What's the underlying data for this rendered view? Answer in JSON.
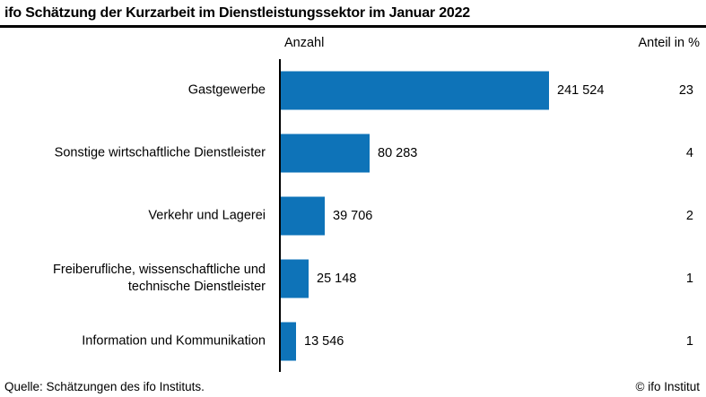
{
  "title": "ifo Schätzung der Kurzarbeit im Dienstleistungssektor im Januar 2022",
  "columns": {
    "count_label": "Anzahl",
    "share_label": "Anteil in %"
  },
  "footer": {
    "source": "Quelle: Schätzungen des ifo Instituts.",
    "copyright": "© ifo Institut"
  },
  "colors": {
    "bar": "#0e73b8",
    "text": "#000000",
    "rule": "#000000",
    "background": "#ffffff"
  },
  "chart_data": {
    "type": "bar",
    "orientation": "horizontal",
    "title": "ifo Schätzung der Kurzarbeit im Dienstleistungssektor im Januar 2022",
    "categories": [
      "Gastgewerbe",
      "Sonstige wirtschaftliche Dienstleister",
      "Verkehr und Lagerei",
      "Freiberufliche, wissenschaftliche und technische Dienstleister",
      "Information und Kommunikation"
    ],
    "series": [
      {
        "name": "Anzahl",
        "values": [
          241524,
          80283,
          39706,
          25148,
          13546
        ],
        "value_labels": [
          "241 524",
          "80 283",
          "39 706",
          "25 148",
          "13 546"
        ]
      },
      {
        "name": "Anteil in %",
        "values": [
          23,
          4,
          2,
          1,
          1
        ]
      }
    ],
    "xlim": [
      0,
      241524
    ],
    "grid": false,
    "legend": "none",
    "bar_color": "#0e73b8",
    "source": "Quelle: Schätzungen des ifo Instituts."
  }
}
